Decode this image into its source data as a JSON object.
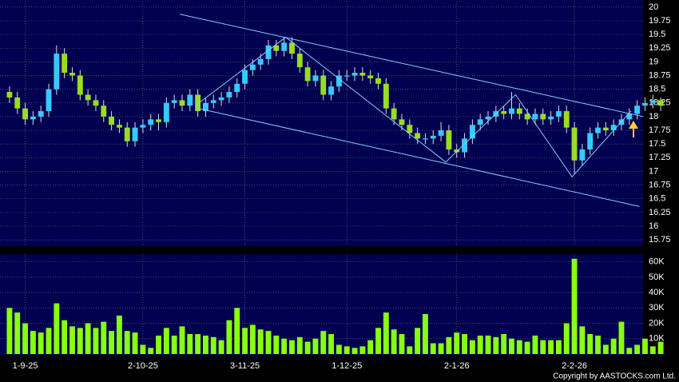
{
  "chart_data": [
    {
      "type": "candlestick",
      "up_color": "#33ccff",
      "down_color": "#99dd22",
      "wick_color": "#dddddd",
      "grid": true,
      "open": [
        18.45,
        18.35,
        18.15,
        17.95,
        18.0,
        18.1,
        18.5,
        19.15,
        18.8,
        18.75,
        18.4,
        18.3,
        18.2,
        18.0,
        17.85,
        17.8,
        17.55,
        17.8,
        17.85,
        17.95,
        17.9,
        18.25,
        18.3,
        18.2,
        18.4,
        18.1,
        18.25,
        18.3,
        18.35,
        18.45,
        18.6,
        18.85,
        18.95,
        19.05,
        19.3,
        19.2,
        19.35,
        19.15,
        18.9,
        18.65,
        18.75,
        18.4,
        18.55,
        18.75,
        18.75,
        18.8,
        18.75,
        18.7,
        18.6,
        18.15,
        17.95,
        17.85,
        17.7,
        17.6,
        17.6,
        17.65,
        17.75,
        17.4,
        17.35,
        17.6,
        17.85,
        17.95,
        18.0,
        18.1,
        18.05,
        18.15,
        18.05,
        17.95,
        18.05,
        17.95,
        18.0,
        18.1,
        17.8,
        17.2,
        17.4,
        17.7,
        17.8,
        17.75,
        17.85,
        17.95,
        18.05,
        18.2,
        18.25,
        18.3
      ],
      "high": [
        18.55,
        18.45,
        18.25,
        18.1,
        18.2,
        18.6,
        19.3,
        19.25,
        18.9,
        18.85,
        18.5,
        18.4,
        18.3,
        18.1,
        17.95,
        17.9,
        17.9,
        17.95,
        18.05,
        18.05,
        18.35,
        18.4,
        18.4,
        18.5,
        18.5,
        18.35,
        18.4,
        18.45,
        18.55,
        18.7,
        18.95,
        19.05,
        19.15,
        19.4,
        19.4,
        19.45,
        19.45,
        19.25,
        19.0,
        18.85,
        18.85,
        18.65,
        18.85,
        18.85,
        18.9,
        18.9,
        18.85,
        18.8,
        18.7,
        18.25,
        18.05,
        17.95,
        17.8,
        17.7,
        17.75,
        17.9,
        17.85,
        17.5,
        17.7,
        17.95,
        18.05,
        18.1,
        18.2,
        18.2,
        18.45,
        18.25,
        18.15,
        18.15,
        18.15,
        18.1,
        18.2,
        18.2,
        17.9,
        17.5,
        17.8,
        17.9,
        17.9,
        17.95,
        18.05,
        18.15,
        18.3,
        18.35,
        18.4,
        18.35
      ],
      "low": [
        18.25,
        18.05,
        17.85,
        17.85,
        17.9,
        18.0,
        18.4,
        18.7,
        18.65,
        18.3,
        18.2,
        18.1,
        17.9,
        17.75,
        17.7,
        17.45,
        17.45,
        17.7,
        17.75,
        17.75,
        17.8,
        18.15,
        18.1,
        18.1,
        18.0,
        18.0,
        18.15,
        18.2,
        18.25,
        18.35,
        18.5,
        18.75,
        18.85,
        18.95,
        19.1,
        19.1,
        19.05,
        18.8,
        18.55,
        18.55,
        18.3,
        18.3,
        18.45,
        18.65,
        18.65,
        18.65,
        18.6,
        18.5,
        18.05,
        17.85,
        17.75,
        17.6,
        17.5,
        17.5,
        17.5,
        17.55,
        17.3,
        17.25,
        17.25,
        17.5,
        17.75,
        17.85,
        17.9,
        17.95,
        17.95,
        17.95,
        17.85,
        17.85,
        17.85,
        17.85,
        17.9,
        17.7,
        16.95,
        17.1,
        17.3,
        17.6,
        17.65,
        17.65,
        17.75,
        17.85,
        17.95,
        18.1,
        18.15,
        18.1
      ],
      "close": [
        18.35,
        18.15,
        17.95,
        18.0,
        18.1,
        18.5,
        19.15,
        18.8,
        18.75,
        18.4,
        18.3,
        18.2,
        18.0,
        17.85,
        17.8,
        17.55,
        17.8,
        17.85,
        17.95,
        17.9,
        18.25,
        18.3,
        18.2,
        18.4,
        18.1,
        18.25,
        18.3,
        18.35,
        18.45,
        18.6,
        18.85,
        18.95,
        19.05,
        19.3,
        19.2,
        19.35,
        19.15,
        18.9,
        18.65,
        18.75,
        18.4,
        18.55,
        18.75,
        18.75,
        18.8,
        18.75,
        18.7,
        18.6,
        18.15,
        17.95,
        17.85,
        17.7,
        17.6,
        17.6,
        17.65,
        17.75,
        17.4,
        17.35,
        17.6,
        17.85,
        17.95,
        18.0,
        18.1,
        18.05,
        18.15,
        18.05,
        17.95,
        18.05,
        17.95,
        18.0,
        18.1,
        17.8,
        17.2,
        17.4,
        17.7,
        17.8,
        17.75,
        17.85,
        17.95,
        18.05,
        18.2,
        18.25,
        18.3,
        18.2
      ],
      "ylim": [
        15.65,
        20.1
      ],
      "yticks": [
        15.75,
        16,
        16.25,
        16.5,
        16.75,
        17,
        17.25,
        17.5,
        17.75,
        18,
        18.25,
        18.5,
        18.75,
        19,
        19.25,
        19.5,
        19.75,
        20
      ],
      "xticks": [
        {
          "value": 2,
          "label": "1-9-25"
        },
        {
          "value": 17,
          "label": "2-10-25"
        },
        {
          "value": 30,
          "label": "3-11-25"
        },
        {
          "value": 43,
          "label": "1-12-25"
        },
        {
          "value": 57,
          "label": "2-1-26"
        },
        {
          "value": 72,
          "label": "2-2-26"
        }
      ],
      "trend_color": "#88ccff",
      "trend_lines": [
        {
          "x": [
            21.7,
            80.8
          ],
          "y": [
            19.87,
            18.0
          ]
        },
        {
          "x": [
            23.7,
            80.3
          ],
          "y": [
            18.16,
            16.36
          ]
        },
        {
          "x": [
            23.7,
            35.2,
            55.6,
            64.5,
            71.7,
            79.2
          ],
          "y": [
            18.2,
            19.45,
            17.17,
            18.4,
            16.9,
            18.1
          ]
        }
      ]
    },
    {
      "type": "bar",
      "color": "#88ff11",
      "grid": true,
      "values": [
        30000,
        27000,
        20000,
        15000,
        14000,
        17000,
        33000,
        22000,
        18000,
        17000,
        20000,
        17000,
        21000,
        15000,
        25000,
        15000,
        14000,
        6000,
        4000,
        12000,
        17000,
        12000,
        18000,
        13000,
        13000,
        12000,
        11000,
        9000,
        22000,
        30000,
        17000,
        19000,
        16000,
        15000,
        12000,
        10000,
        9000,
        11000,
        8000,
        10000,
        15000,
        13000,
        6000,
        5000,
        4000,
        5000,
        9000,
        17000,
        27000,
        16000,
        13000,
        5000,
        17000,
        26000,
        7000,
        7000,
        11000,
        14000,
        13000,
        9000,
        12000,
        12000,
        11000,
        13000,
        10000,
        9000,
        8000,
        12000,
        9000,
        9000,
        9000,
        20000,
        62000,
        18000,
        13000,
        12000,
        6000,
        10000,
        21000,
        4000,
        6000,
        10000,
        5000,
        8000
      ],
      "ylim": [
        0,
        65000
      ],
      "yticks": [
        {
          "value": 10000,
          "label": "10K"
        },
        {
          "value": 20000,
          "label": "20K"
        },
        {
          "value": 30000,
          "label": "30K"
        },
        {
          "value": 40000,
          "label": "40K"
        },
        {
          "value": 50000,
          "label": "50K"
        },
        {
          "value": 60000,
          "label": "60K"
        }
      ],
      "footnote": "Copyright by AASTOCKS.com Ltd."
    }
  ]
}
